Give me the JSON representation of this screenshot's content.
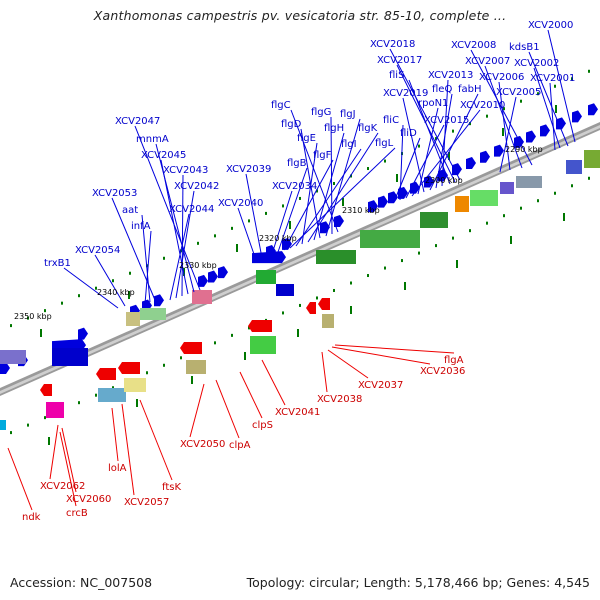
{
  "title": "Xanthomonas campestris pv. vesicatoria str. 85-10, complete ...",
  "accession": "Accession: NC_007508",
  "topology": "Topology: circular; Length: 5,178,466 bp; Genes: 4,545",
  "scale_labels": [
    "2290 kbp",
    "2300 kbp",
    "2310 kbp",
    "2320 kbp",
    "2330 kbp",
    "2340 kbp",
    "2350 kbp"
  ],
  "top_labels": [
    "XCV2000",
    "kdsB1",
    "XCV2002",
    "XCV2001",
    "XCV2008",
    "XCV2007",
    "XCV2006",
    "XCV2005",
    "XCV2018",
    "XCV2017",
    "fliS",
    "XCV2013",
    "fleQ",
    "fabH",
    "XCV2019",
    "rpoN1",
    "XCV2010",
    "XCV2015",
    "fliC",
    "fliD",
    "flgC",
    "flgG",
    "flgJ",
    "flgD",
    "flgH",
    "flgK",
    "flgE",
    "flgI",
    "flgL",
    "flgF",
    "flgB",
    "XCV2034",
    "XCV2039",
    "XCV2040",
    "XCV2047",
    "mnmA",
    "XCV2045",
    "XCV2043",
    "XCV2042",
    "XCV2044",
    "XCV2053",
    "aat",
    "infA",
    "XCV2054",
    "trxB1"
  ],
  "bottom_labels": [
    "flgA",
    "XCV2036",
    "XCV2037",
    "XCV2038",
    "XCV2041",
    "clpS",
    "clpA",
    "XCV2050",
    "lolA",
    "ftsK",
    "XCV2057",
    "XCV2062",
    "XCV2060",
    "crcB",
    "ndk"
  ],
  "colors": {
    "plus_strand": "#0000dd",
    "minus_strand": "#ee0000",
    "scale_ticks": "#007700",
    "axis": "#888888"
  }
}
